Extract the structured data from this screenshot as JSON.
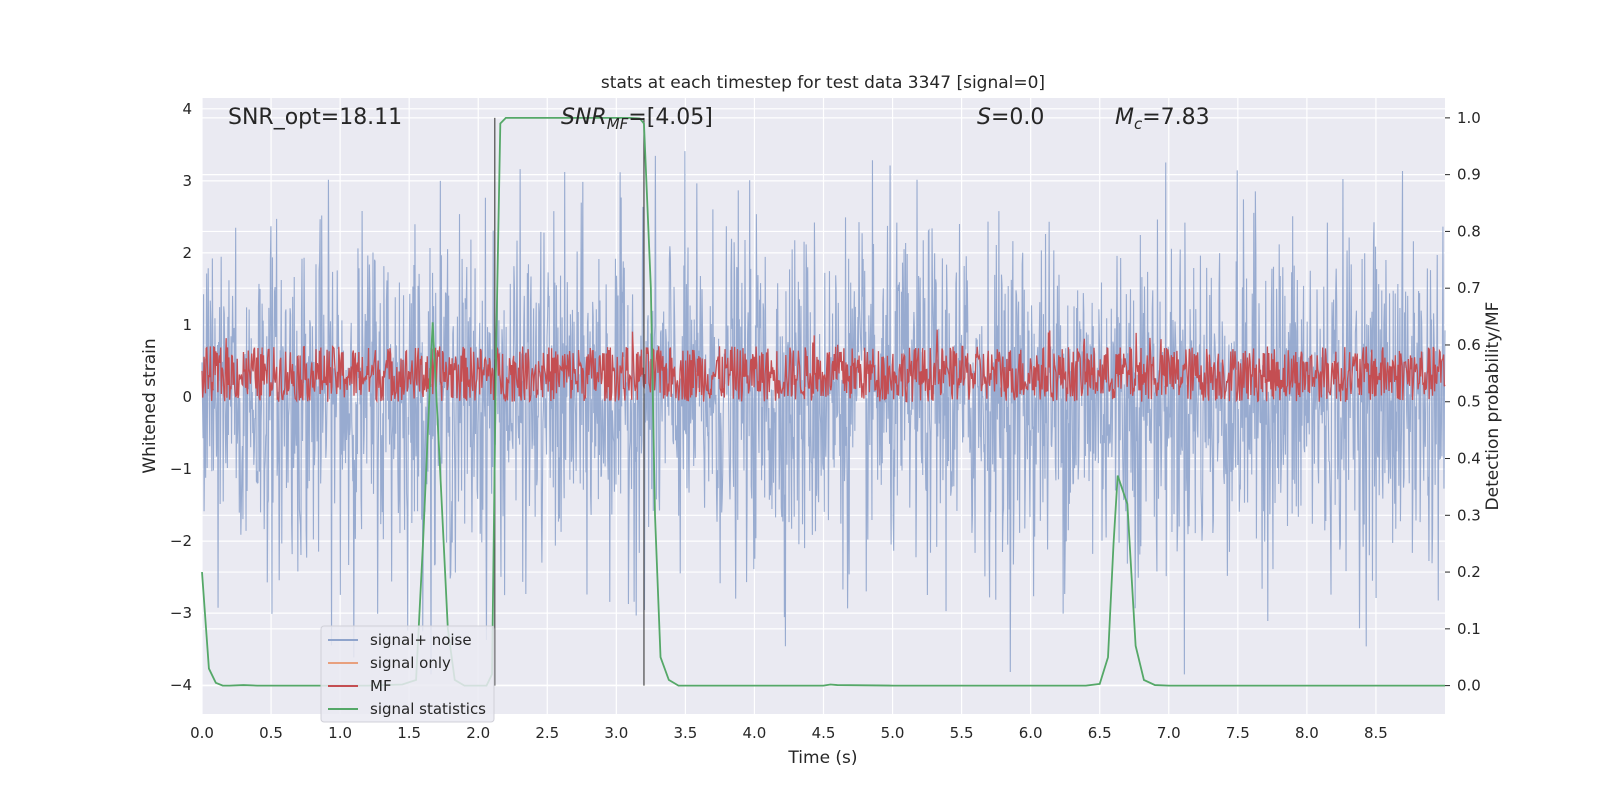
{
  "chart_data": {
    "type": "line",
    "title": "stats at each timestep for test data 3347 [signal=0]",
    "xlabel": "Time (s)",
    "ylabel": "Whitened strain",
    "y2label": "Detection probability/MF",
    "xlim": [
      0,
      9.0
    ],
    "ylim": [
      -4.4,
      4.15
    ],
    "y2lim": [
      -0.05,
      1.035
    ],
    "xticks": [
      0.0,
      0.5,
      1.0,
      1.5,
      2.0,
      2.5,
      3.0,
      3.5,
      4.0,
      4.5,
      5.0,
      5.5,
      6.0,
      6.5,
      7.0,
      7.5,
      8.0,
      8.5
    ],
    "xtick_labels": [
      "0.0",
      "0.5",
      "1.0",
      "1.5",
      "2.0",
      "2.5",
      "3.0",
      "3.5",
      "4.0",
      "4.5",
      "5.0",
      "5.5",
      "6.0",
      "6.5",
      "7.0",
      "7.5",
      "8.0",
      "8.5"
    ],
    "yticks": [
      -4,
      -3,
      -2,
      -1,
      0,
      1,
      2,
      3,
      4
    ],
    "ytick_labels": [
      "−4",
      "−3",
      "−2",
      "−1",
      "0",
      "1",
      "2",
      "3",
      "4"
    ],
    "y2ticks": [
      0.0,
      0.1,
      0.2,
      0.3,
      0.4,
      0.5,
      0.6,
      0.7,
      0.8,
      0.9,
      1.0
    ],
    "y2tick_labels": [
      "0.0",
      "0.1",
      "0.2",
      "0.3",
      "0.4",
      "0.5",
      "0.6",
      "0.7",
      "0.8",
      "0.9",
      "1.0"
    ],
    "annotations": {
      "snr_opt": "SNR_opt=18.11",
      "snr_mf_label": "SNR",
      "snr_mf_sub": "MF",
      "snr_mf_value": "=[4.05]",
      "s_label": "S",
      "s_value": "=0.0",
      "mc_label": "M",
      "mc_sub": "c",
      "mc_value": "=7.83"
    },
    "vlines": [
      2.12,
      3.2
    ],
    "series": [
      {
        "name": "signal+ noise",
        "color": "#8fa4cc",
        "noise_amplitude": 2.1,
        "description": "whitened strain noise, left axis"
      },
      {
        "name": "signal only",
        "color": "#e8a07e",
        "values": []
      },
      {
        "name": "MF",
        "color": "#c44e52",
        "baseline": 0.53,
        "range": [
          0.5,
          0.615
        ],
        "description": "matched filter output, right axis"
      },
      {
        "name": "signal statistics",
        "color": "#55a868",
        "axis": "right",
        "x": [
          0.0,
          0.05,
          0.1,
          0.15,
          0.2,
          0.3,
          0.4,
          0.5,
          0.8,
          1.2,
          1.45,
          1.55,
          1.6,
          1.67,
          1.72,
          1.78,
          1.83,
          1.9,
          2.0,
          2.06,
          2.1,
          2.13,
          2.16,
          2.2,
          2.3,
          2.5,
          2.8,
          3.0,
          3.1,
          3.17,
          3.2,
          3.25,
          3.28,
          3.32,
          3.38,
          3.45,
          3.6,
          4.0,
          4.5,
          4.55,
          4.6,
          5.0,
          5.5,
          6.0,
          6.4,
          6.5,
          6.56,
          6.6,
          6.63,
          6.7,
          6.76,
          6.82,
          6.9,
          7.0,
          7.5,
          8.0,
          8.5,
          9.0
        ],
        "y": [
          0.2,
          0.03,
          0.005,
          0.0,
          0.0,
          0.001,
          0.0,
          0.0,
          0.0,
          0.0,
          0.002,
          0.01,
          0.25,
          0.64,
          0.4,
          0.1,
          0.01,
          0.0,
          0.0,
          0.0,
          0.02,
          0.6,
          0.99,
          1.0,
          1.0,
          1.0,
          1.0,
          1.0,
          1.0,
          0.999,
          0.99,
          0.7,
          0.3,
          0.05,
          0.01,
          0.0,
          0.0,
          0.0,
          0.0,
          0.002,
          0.001,
          0.0,
          0.0,
          0.0,
          0.0,
          0.003,
          0.05,
          0.25,
          0.37,
          0.32,
          0.07,
          0.01,
          0.001,
          0.0,
          0.0,
          0.0,
          0.0,
          0.0
        ]
      }
    ],
    "legend": {
      "placement": "lower-left",
      "entries": [
        {
          "label": "signal+ noise",
          "color": "#8fa4cc"
        },
        {
          "label": "signal only",
          "color": "#e8a07e"
        },
        {
          "label": "MF",
          "color": "#c44e52"
        },
        {
          "label": "signal statistics",
          "color": "#55a868"
        }
      ]
    }
  },
  "colors": {
    "plot_bg": "#eaeaf2",
    "grid": "#ffffff",
    "text": "#262626",
    "vline": "#4a4a4a"
  }
}
